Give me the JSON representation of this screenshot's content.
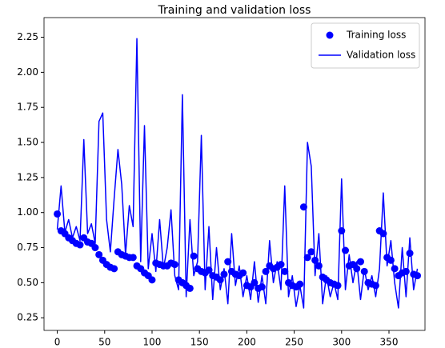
{
  "chart_data": {
    "type": "line",
    "title": "Training and validation loss",
    "x": [
      0,
      4,
      8,
      12,
      16,
      20,
      24,
      28,
      32,
      36,
      40,
      44,
      48,
      52,
      56,
      60,
      64,
      68,
      72,
      76,
      80,
      84,
      88,
      92,
      96,
      100,
      104,
      108,
      112,
      116,
      120,
      124,
      128,
      132,
      136,
      140,
      144,
      148,
      152,
      156,
      160,
      164,
      168,
      172,
      176,
      180,
      184,
      188,
      192,
      196,
      200,
      204,
      208,
      212,
      216,
      220,
      224,
      228,
      232,
      236,
      240,
      244,
      248,
      252,
      256,
      260,
      264,
      268,
      272,
      276,
      280,
      284,
      288,
      292,
      296,
      300,
      304,
      308,
      312,
      316,
      320,
      324,
      328,
      332,
      336,
      340,
      344,
      348,
      352,
      356,
      360,
      364,
      368,
      372,
      376,
      380
    ],
    "series": [
      {
        "name": "Training loss",
        "mode": "markers",
        "color": "#0000ff",
        "values": [
          0.99,
          0.87,
          0.85,
          0.82,
          0.8,
          0.78,
          0.77,
          0.82,
          0.79,
          0.78,
          0.75,
          0.7,
          0.66,
          0.63,
          0.61,
          0.6,
          0.72,
          0.7,
          0.69,
          0.68,
          0.68,
          0.62,
          0.6,
          0.57,
          0.55,
          0.52,
          0.64,
          0.63,
          0.62,
          0.62,
          0.64,
          0.63,
          0.52,
          0.5,
          0.48,
          0.46,
          0.69,
          0.6,
          0.58,
          0.57,
          0.59,
          0.55,
          0.54,
          0.52,
          0.56,
          0.65,
          0.58,
          0.56,
          0.55,
          0.57,
          0.48,
          0.47,
          0.5,
          0.46,
          0.47,
          0.58,
          0.62,
          0.6,
          0.61,
          0.63,
          0.58,
          0.5,
          0.48,
          0.47,
          0.49,
          1.04,
          0.68,
          0.72,
          0.66,
          0.62,
          0.54,
          0.52,
          0.5,
          0.49,
          0.48,
          0.87,
          0.73,
          0.62,
          0.63,
          0.6,
          0.65,
          0.58,
          0.5,
          0.49,
          0.48,
          0.87,
          0.85,
          0.68,
          0.66,
          0.6,
          0.55,
          0.57,
          0.58,
          0.71,
          0.56,
          0.55
        ]
      },
      {
        "name": "Validation loss",
        "mode": "lines",
        "color": "#0000ff",
        "values": [
          0.88,
          1.19,
          0.86,
          0.95,
          0.82,
          0.9,
          0.8,
          1.52,
          0.85,
          0.92,
          0.78,
          1.65,
          1.71,
          0.95,
          0.72,
          1.1,
          1.45,
          1.2,
          0.7,
          1.05,
          0.9,
          2.24,
          0.65,
          1.62,
          0.6,
          0.85,
          0.58,
          0.95,
          0.6,
          0.75,
          1.02,
          0.55,
          0.45,
          1.84,
          0.4,
          0.95,
          0.55,
          0.65,
          1.55,
          0.45,
          0.9,
          0.38,
          0.75,
          0.45,
          0.6,
          0.35,
          0.85,
          0.48,
          0.62,
          0.4,
          0.55,
          0.38,
          0.65,
          0.36,
          0.55,
          0.35,
          0.8,
          0.5,
          0.65,
          0.45,
          1.19,
          0.4,
          0.55,
          0.33,
          0.48,
          0.32,
          1.5,
          1.33,
          0.55,
          0.85,
          0.35,
          0.55,
          0.4,
          0.5,
          0.38,
          1.24,
          0.45,
          0.7,
          0.5,
          0.65,
          0.38,
          0.6,
          0.45,
          0.55,
          0.4,
          0.6,
          1.14,
          0.62,
          0.8,
          0.5,
          0.32,
          0.75,
          0.4,
          0.82,
          0.45,
          0.6
        ]
      }
    ],
    "xlim": [
      -14,
      388
    ],
    "ylim": [
      0.16,
      2.39
    ],
    "xticks": [
      0,
      50,
      100,
      150,
      200,
      250,
      300,
      350
    ],
    "yticks": [
      0.25,
      {
        "value": 0.5,
        "label": "0.50"
      },
      0.75,
      {
        "value": 1,
        "label": "1.00"
      },
      1.25,
      {
        "value": 1.5,
        "label": "1.50"
      },
      1.75,
      {
        "value": 2,
        "label": "2.00"
      },
      2.25
    ],
    "legend": "upper right"
  }
}
